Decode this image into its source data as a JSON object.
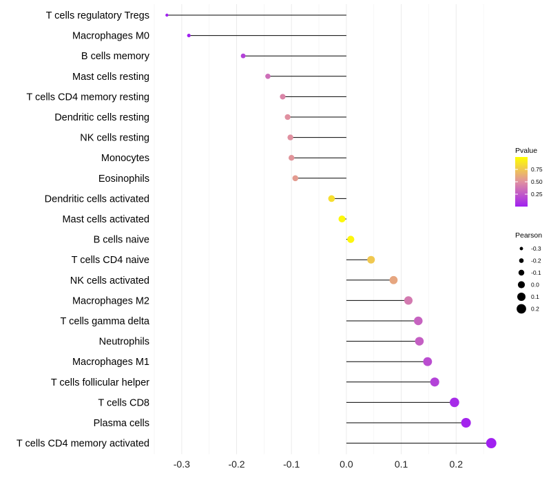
{
  "chart_data": {
    "type": "lollipop",
    "categories": [
      "T cells regulatory  Tregs",
      "Macrophages M0",
      "B cells memory",
      "Mast cells resting",
      "T cells CD4 memory resting",
      "Dendritic cells resting",
      "NK cells resting",
      "Monocytes",
      "Eosinophils",
      "Dendritic cells activated",
      "Mast cells activated",
      "B cells naive",
      "T cells CD4 naive",
      "NK cells activated",
      "Macrophages M2",
      "T cells gamma delta",
      "Neutrophils",
      "Macrophages M1",
      "T cells follicular helper",
      "T cells CD8",
      "Plasma cells",
      "T cells CD4 memory activated"
    ],
    "values": [
      -0.327,
      -0.287,
      -0.188,
      -0.143,
      -0.116,
      -0.107,
      -0.102,
      -0.1,
      -0.093,
      -0.027,
      -0.008,
      0.008,
      0.045,
      0.086,
      0.113,
      0.131,
      0.133,
      0.148,
      0.161,
      0.197,
      0.218,
      0.264
    ],
    "pvalues": [
      0.0001,
      0.0003,
      0.15,
      0.35,
      0.45,
      0.5,
      0.5,
      0.52,
      0.55,
      0.85,
      0.97,
      0.96,
      0.75,
      0.6,
      0.4,
      0.3,
      0.28,
      0.2,
      0.15,
      0.05,
      0.02,
      0.001
    ],
    "x_ticks": [
      -0.3,
      -0.2,
      -0.1,
      0.0,
      0.1,
      0.2
    ],
    "x_tick_labels": [
      "-0.3",
      "-0.2",
      "-0.1",
      "0.0",
      "0.1",
      "0.2"
    ],
    "xlim": [
      -0.35,
      0.28
    ],
    "color_legend": {
      "title": "Pvalue",
      "ticks": [
        0.25,
        0.5,
        0.75
      ],
      "tick_labels": [
        "0.25",
        "0.50",
        "0.75"
      ],
      "range": [
        0.0,
        1.0
      ],
      "low_color": "#a020f0",
      "mid_color": "#e090a0",
      "high_color": "#ffff00"
    },
    "size_legend": {
      "title": "Pearson",
      "values": [
        -0.3,
        -0.2,
        -0.1,
        0.0,
        0.1,
        0.2
      ],
      "labels": [
        "-0.3",
        "-0.2",
        "-0.1",
        "0.0",
        "0.1",
        "0.2"
      ]
    },
    "grid": true,
    "legend_position": "right",
    "title": "",
    "xlabel": "",
    "ylabel": ""
  }
}
